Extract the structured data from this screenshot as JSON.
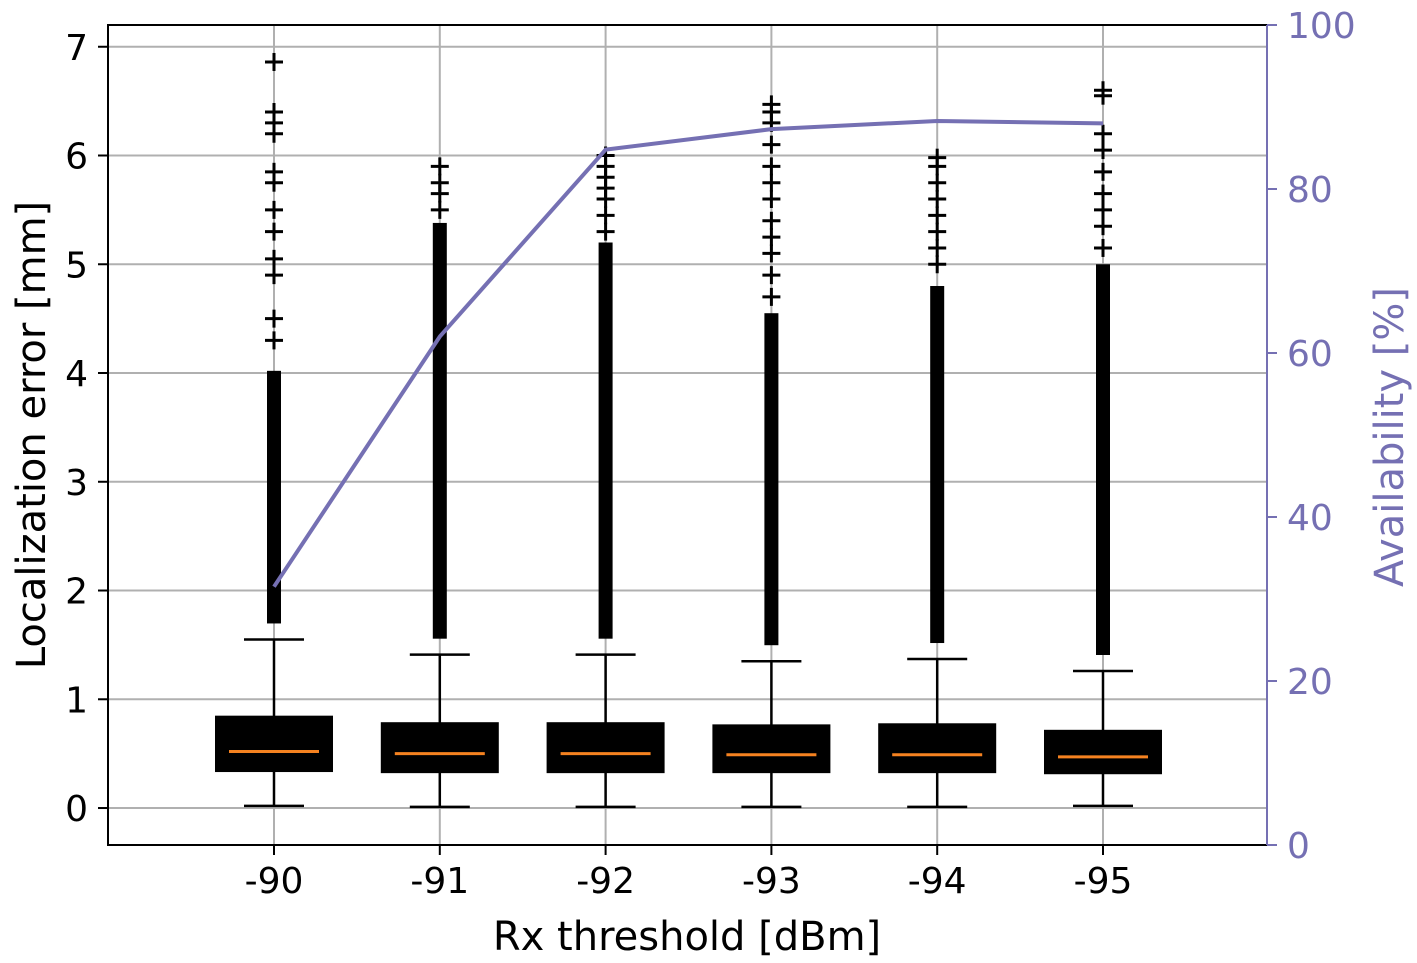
{
  "colors": {
    "background": "#ffffff",
    "box": "#000000",
    "median": "#f58220",
    "availability": "#7570b3",
    "grid": "#b0b0b0"
  },
  "chart_data": {
    "type": "box",
    "xlabel": "Rx threshold [dBm]",
    "ylabel": "Localization error [mm]",
    "y2label": "Availability [%]",
    "categories": [
      "-90",
      "-91",
      "-92",
      "-93",
      "-94",
      "-95"
    ],
    "ylim": [
      -0.34,
      7.2
    ],
    "y2lim": [
      0,
      100
    ],
    "yticks": [
      0,
      1,
      2,
      3,
      4,
      5,
      6,
      7
    ],
    "y2ticks": [
      0,
      20,
      40,
      60,
      80,
      100
    ],
    "grid": true,
    "boxes": [
      {
        "category": "-90",
        "whisker_low": 0.02,
        "q1": 0.34,
        "median": 0.52,
        "q3": 0.84,
        "whisker_high": 1.55,
        "outlier_dense_top": 4.02,
        "outliers": [
          4.3,
          4.5,
          4.9,
          5.05,
          5.3,
          5.5,
          5.75,
          5.85,
          6.2,
          6.3,
          6.4,
          6.86
        ]
      },
      {
        "category": "-91",
        "whisker_low": 0.01,
        "q1": 0.33,
        "median": 0.5,
        "q3": 0.78,
        "whisker_high": 1.41,
        "outlier_dense_top": 5.38,
        "outliers": [
          5.5,
          5.65,
          5.75,
          5.9
        ]
      },
      {
        "category": "-92",
        "whisker_low": 0.01,
        "q1": 0.33,
        "median": 0.5,
        "q3": 0.78,
        "whisker_high": 1.41,
        "outlier_dense_top": 5.2,
        "outliers": [
          5.3,
          5.45,
          5.6,
          5.7,
          5.8,
          5.9,
          6.0
        ]
      },
      {
        "category": "-93",
        "whisker_low": 0.01,
        "q1": 0.33,
        "median": 0.49,
        "q3": 0.76,
        "whisker_high": 1.35,
        "outlier_dense_top": 4.55,
        "outliers": [
          4.7,
          4.9,
          5.1,
          5.25,
          5.4,
          5.6,
          5.75,
          5.9,
          6.1,
          6.3,
          6.4,
          6.47
        ]
      },
      {
        "category": "-94",
        "whisker_low": 0.01,
        "q1": 0.33,
        "median": 0.49,
        "q3": 0.77,
        "whisker_high": 1.37,
        "outlier_dense_top": 4.8,
        "outliers": [
          5.0,
          5.15,
          5.3,
          5.45,
          5.6,
          5.75,
          5.9,
          5.98
        ]
      },
      {
        "category": "-95",
        "whisker_low": 0.02,
        "q1": 0.32,
        "median": 0.47,
        "q3": 0.71,
        "whisker_high": 1.26,
        "outlier_dense_top": 5.0,
        "outliers": [
          5.15,
          5.35,
          5.5,
          5.65,
          5.85,
          6.05,
          6.2,
          6.55,
          6.6
        ]
      }
    ],
    "series": [
      {
        "axis": "right",
        "values": [
          31.5,
          62.0,
          84.8,
          87.3,
          88.3,
          88.0
        ]
      }
    ]
  }
}
